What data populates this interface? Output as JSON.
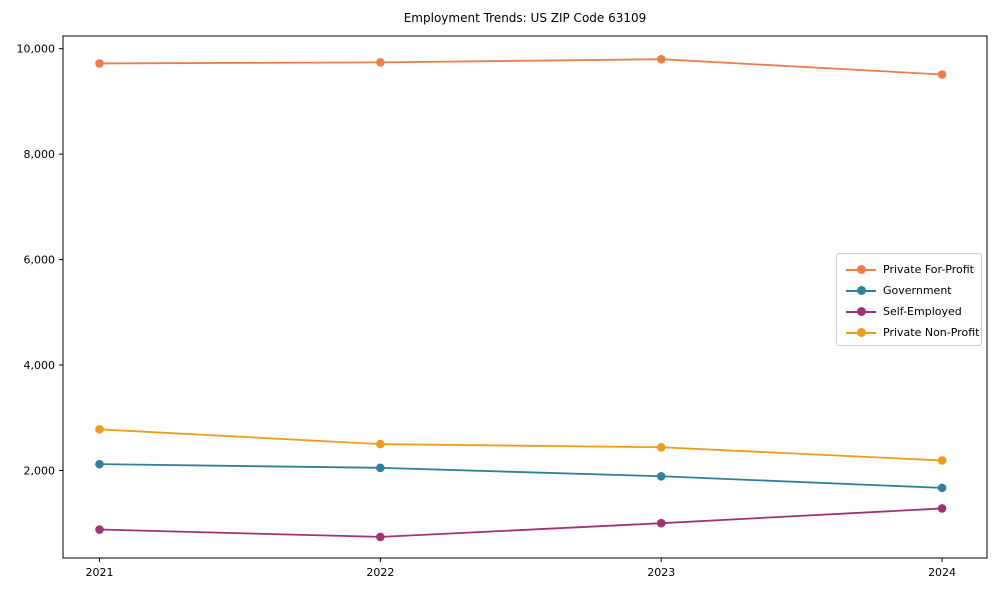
{
  "title": "Employment Trends: US ZIP Code 63109",
  "chart_data": {
    "type": "line",
    "x": [
      2021,
      2022,
      2023,
      2024
    ],
    "xtick_labels": [
      "2021",
      "2022",
      "2023",
      "2024"
    ],
    "yticks": [
      2000,
      4000,
      6000,
      8000,
      10000
    ],
    "ytick_labels": [
      "2,000",
      "4,000",
      "6,000",
      "8,000",
      "10,000"
    ],
    "xlim": [
      2020.87,
      2024.16
    ],
    "ylim": [
      340,
      10240
    ],
    "grid": false,
    "legend_position": "center right",
    "marker": "o",
    "title": "Employment Trends: US ZIP Code 63109",
    "xlabel": "",
    "ylabel": "",
    "series": [
      {
        "name": "Private For-Profit",
        "color": "#EC7E4A",
        "values": [
          9720,
          9740,
          9800,
          9510
        ]
      },
      {
        "name": "Government",
        "color": "#2E809B",
        "values": [
          2120,
          2050,
          1890,
          1670
        ]
      },
      {
        "name": "Self-Employed",
        "color": "#A13375",
        "values": [
          880,
          740,
          1000,
          1280
        ]
      },
      {
        "name": "Private Non-Profit",
        "color": "#EE9B1B",
        "values": [
          2780,
          2500,
          2440,
          2190
        ]
      }
    ],
    "axis_color": "#000000",
    "tick_font_size": 11
  }
}
